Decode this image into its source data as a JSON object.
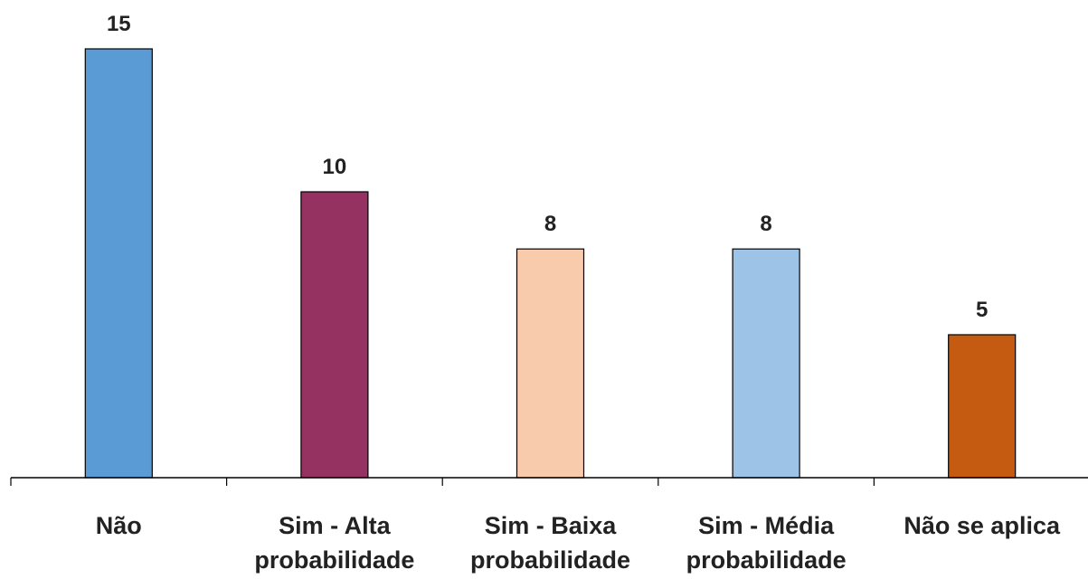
{
  "chart_data": {
    "type": "bar",
    "categories": [
      [
        "Não"
      ],
      [
        "Sim - Alta",
        "probabilidade"
      ],
      [
        "Sim - Baixa",
        "probabilidade"
      ],
      [
        "Sim - Média",
        "probabilidade"
      ],
      [
        "Não se aplica"
      ]
    ],
    "values": [
      15,
      10,
      8,
      8,
      5
    ],
    "colors": [
      "#5b9bd5",
      "#953262",
      "#f8cbad",
      "#9dc3e6",
      "#c55a11"
    ],
    "data_labels": [
      "15",
      "10",
      "8",
      "8",
      "5"
    ],
    "title": "",
    "xlabel": "",
    "ylabel": "",
    "ylim": [
      0,
      15
    ],
    "grid": false,
    "legend": "none"
  }
}
